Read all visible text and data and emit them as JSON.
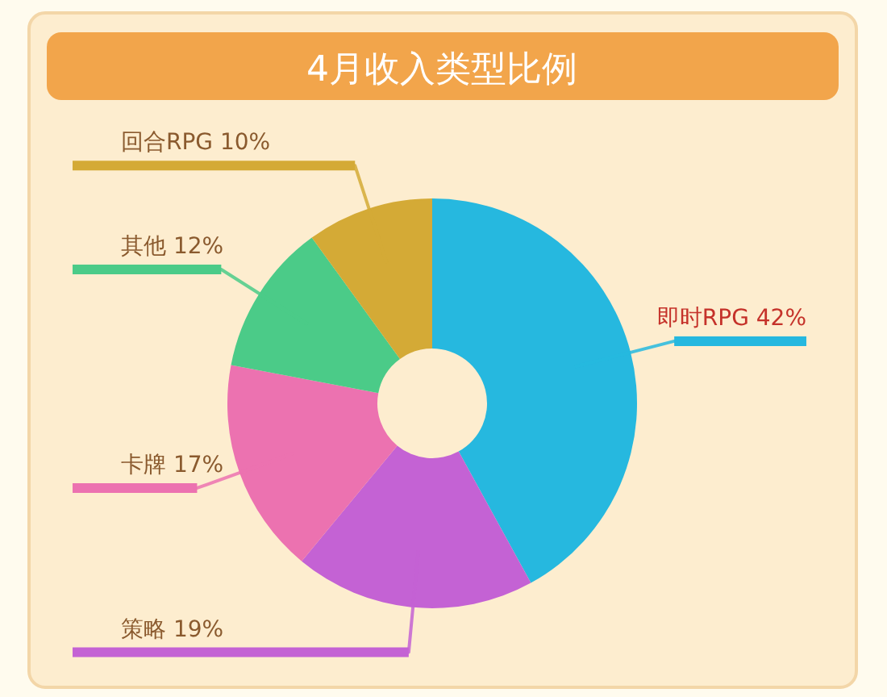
{
  "chart_data": {
    "type": "donut",
    "title": "4月收入类型比例",
    "categories": [
      "即时RPG",
      "策略",
      "卡牌",
      "其他",
      "回合RPG"
    ],
    "values": [
      42,
      19,
      17,
      12,
      10
    ],
    "value_labels": [
      "42%",
      "19%",
      "17%",
      "12%",
      "10%"
    ],
    "colors": [
      "#26b8df",
      "#c462d4",
      "#ec72b0",
      "#4bcb88",
      "#d4aa36"
    ]
  }
}
